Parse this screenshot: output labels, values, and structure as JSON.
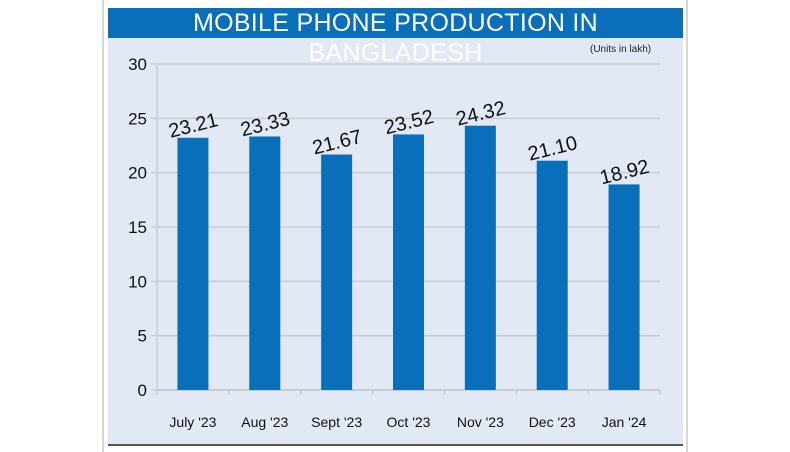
{
  "chart_data": {
    "type": "bar",
    "title": "MOBILE PHONE PRODUCTION IN BANGLADESH",
    "subtitle": "(Units in lakh)",
    "categories": [
      "July '23",
      "Aug '23",
      "Sept '23",
      "Oct '23",
      "Nov '23",
      "Dec '23",
      "Jan '24"
    ],
    "values": [
      23.21,
      23.33,
      21.67,
      23.52,
      24.32,
      21.1,
      18.92
    ],
    "data_labels": [
      "23.21",
      "23.33",
      "21.67",
      "23.52",
      "24.32",
      "21.10",
      "18.92"
    ],
    "yticks": [
      "0",
      "5",
      "10",
      "15",
      "20",
      "25",
      "30"
    ],
    "ylim": [
      0,
      30
    ],
    "grid": true,
    "colors": {
      "bar": "#0a6fba",
      "title_bg": "#0a6fba",
      "plot_bg": "#e2e9f4"
    }
  }
}
